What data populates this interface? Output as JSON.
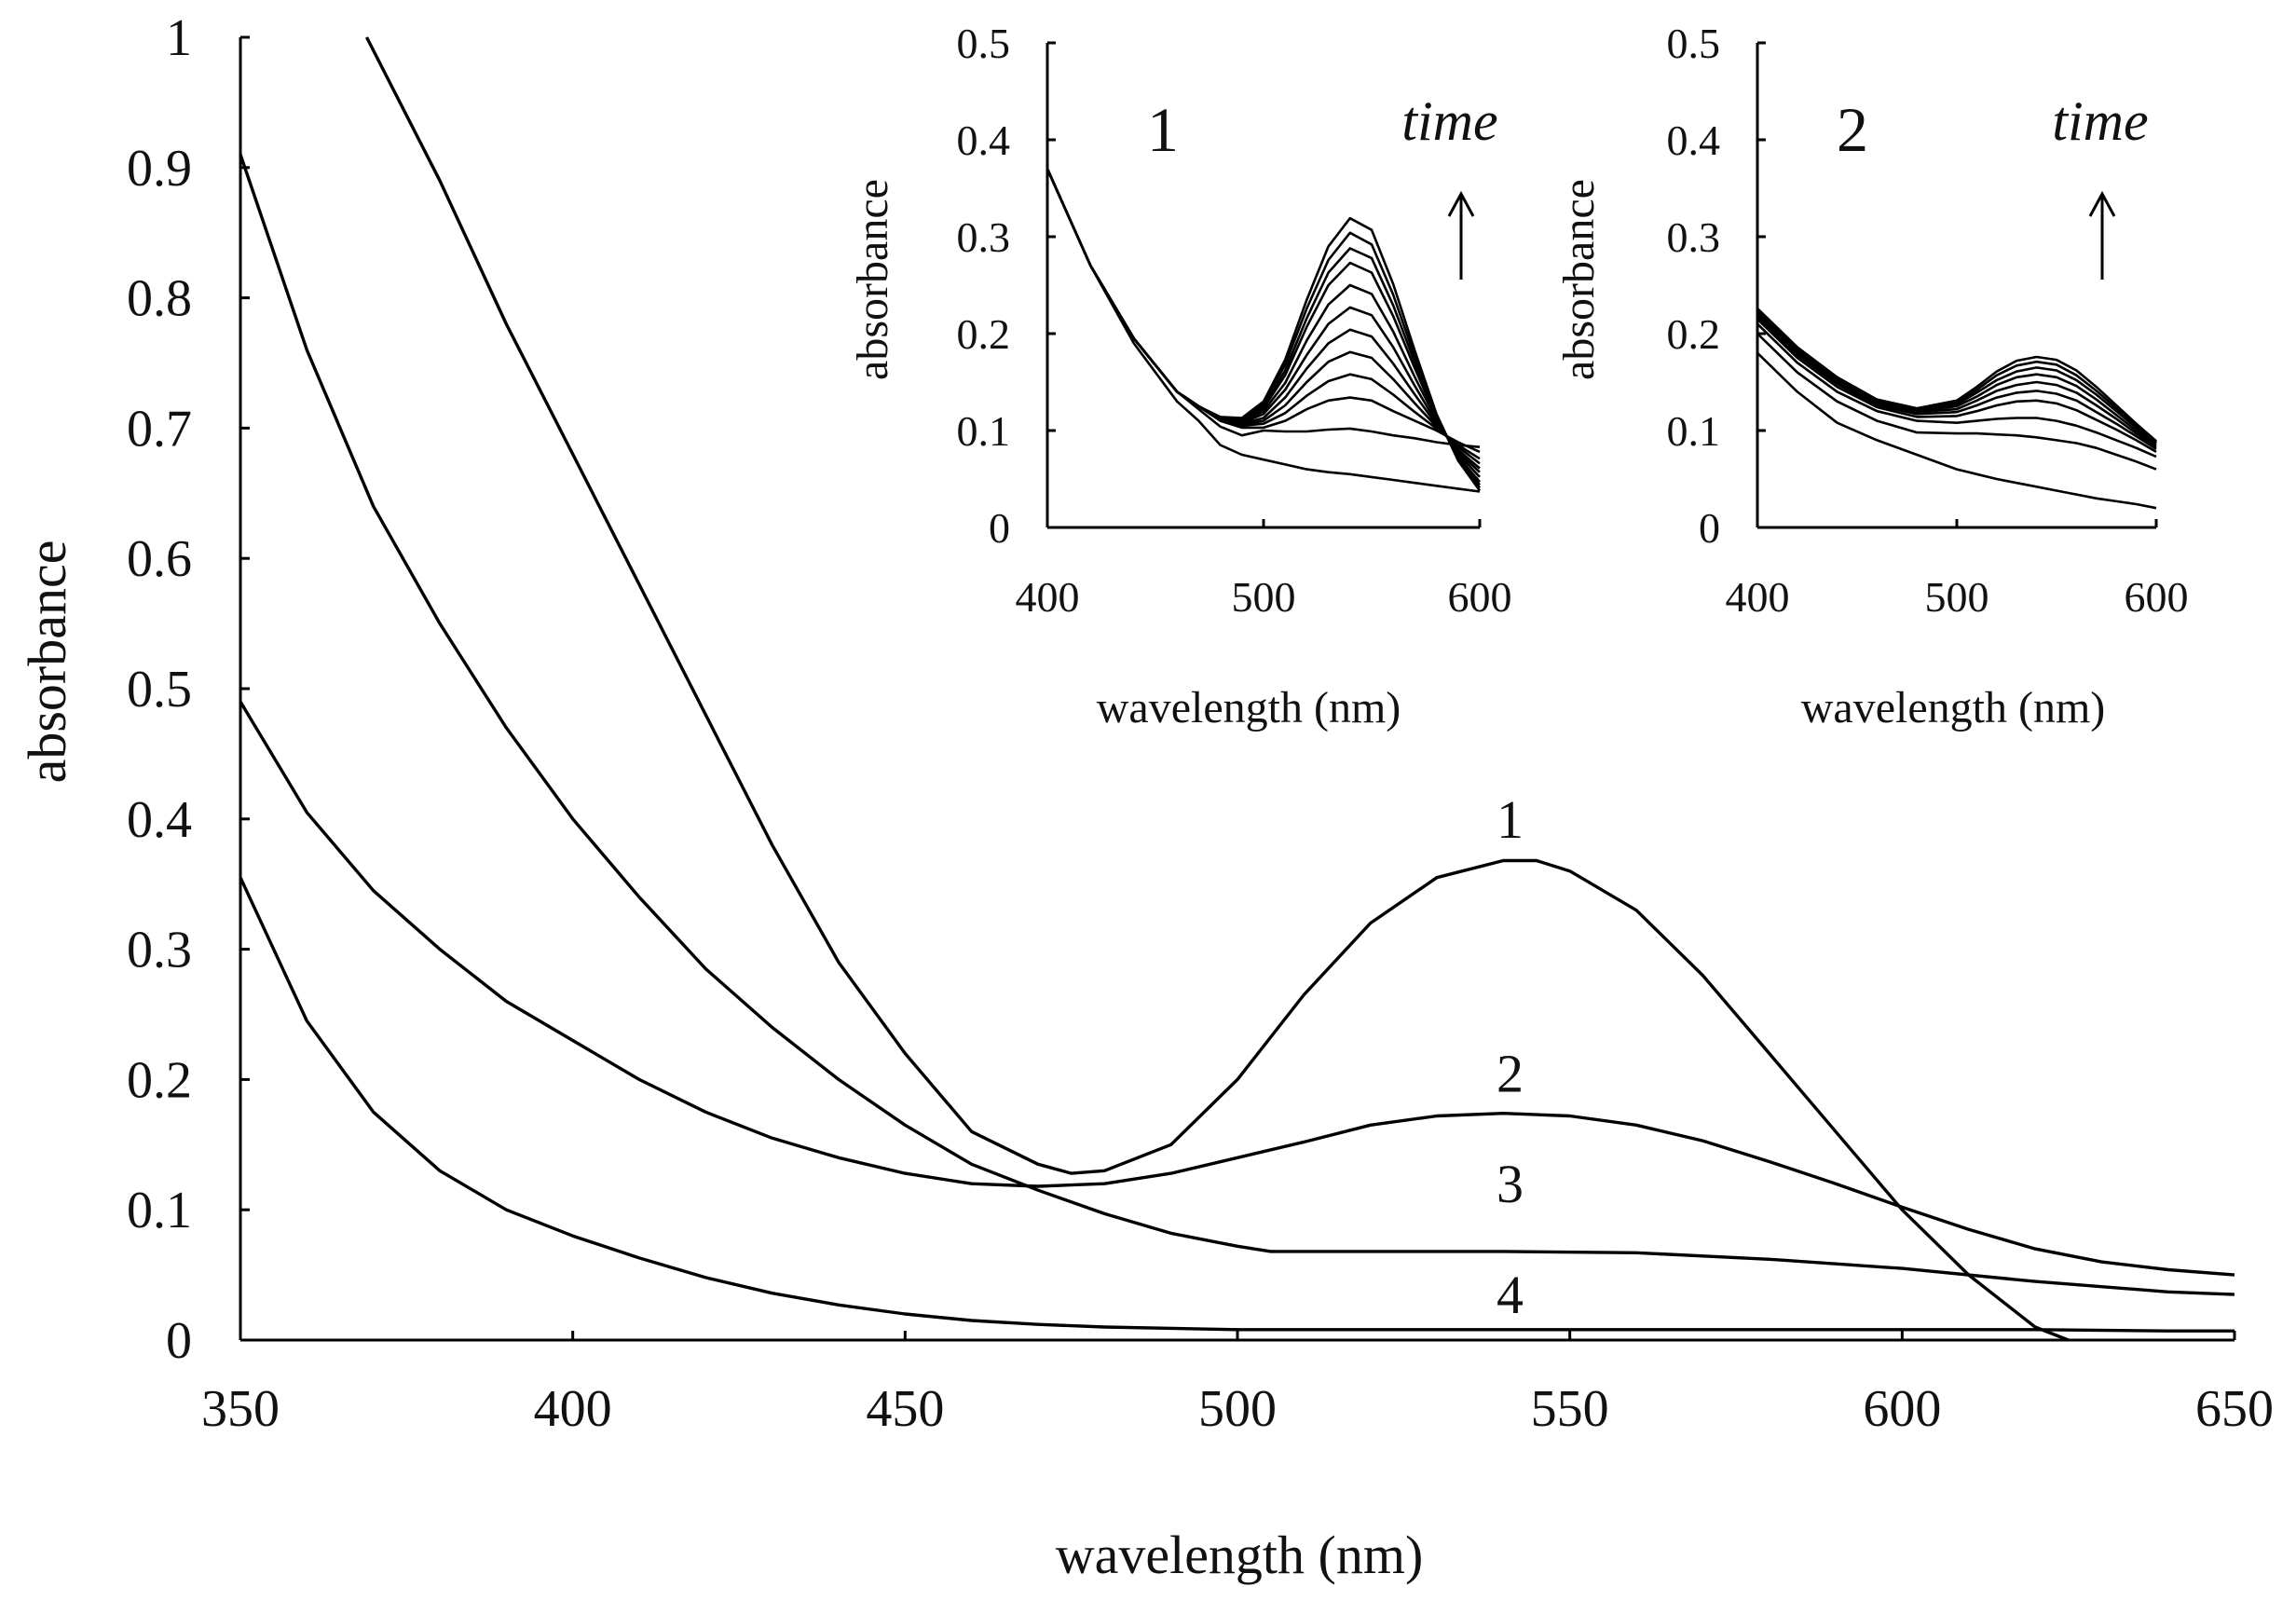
{
  "chart_data": [
    {
      "id": "main",
      "type": "line",
      "title": "",
      "xlabel": "wavelength (nm)",
      "ylabel": "absorbance",
      "xlim": [
        350,
        650
      ],
      "ylim": [
        0,
        1
      ],
      "x_ticks": [
        350,
        400,
        450,
        500,
        550,
        600,
        650
      ],
      "y_ticks": [
        0,
        0.1,
        0.2,
        0.3,
        0.4,
        0.5,
        0.6,
        0.7,
        0.8,
        0.9,
        1
      ],
      "y_tick_labels": [
        "0",
        "0.1",
        "0.2",
        "0.3",
        "0.4",
        "0.5",
        "0.6",
        "0.7",
        "0.8",
        "0.9",
        "1"
      ],
      "grid": false,
      "series": [
        {
          "curve_label": "1",
          "x": [
            369,
            380,
            390,
            400,
            410,
            420,
            430,
            440,
            450,
            460,
            470,
            475,
            480,
            490,
            500,
            510,
            520,
            530,
            540,
            545,
            550,
            560,
            570,
            580,
            590,
            600,
            610,
            620,
            625
          ],
          "y": [
            1.0,
            0.89,
            0.78,
            0.68,
            0.58,
            0.48,
            0.38,
            0.29,
            0.22,
            0.16,
            0.135,
            0.128,
            0.13,
            0.15,
            0.2,
            0.265,
            0.32,
            0.355,
            0.368,
            0.368,
            0.36,
            0.33,
            0.28,
            0.22,
            0.16,
            0.1,
            0.05,
            0.01,
            0.0
          ]
        },
        {
          "curve_label": "2",
          "x": [
            350,
            360,
            370,
            380,
            390,
            400,
            410,
            420,
            430,
            440,
            450,
            460,
            470,
            480,
            490,
            500,
            510,
            520,
            530,
            540,
            550,
            560,
            570,
            580,
            590,
            600,
            610,
            620,
            630,
            640,
            650
          ],
          "y": [
            0.49,
            0.405,
            0.345,
            0.3,
            0.26,
            0.23,
            0.2,
            0.175,
            0.155,
            0.14,
            0.128,
            0.12,
            0.118,
            0.12,
            0.128,
            0.14,
            0.152,
            0.165,
            0.172,
            0.174,
            0.172,
            0.165,
            0.153,
            0.137,
            0.12,
            0.102,
            0.085,
            0.07,
            0.06,
            0.054,
            0.05
          ]
        },
        {
          "curve_label": "3",
          "x": [
            350,
            360,
            370,
            380,
            390,
            400,
            410,
            420,
            430,
            440,
            450,
            460,
            470,
            480,
            490,
            500,
            505,
            520,
            540,
            560,
            580,
            600,
            620,
            640,
            650
          ],
          "y": [
            0.91,
            0.76,
            0.64,
            0.55,
            0.47,
            0.4,
            0.34,
            0.285,
            0.24,
            0.2,
            0.165,
            0.135,
            0.115,
            0.097,
            0.082,
            0.072,
            0.068,
            0.068,
            0.068,
            0.067,
            0.062,
            0.055,
            0.045,
            0.037,
            0.035
          ]
        },
        {
          "curve_label": "4",
          "x": [
            350,
            360,
            370,
            380,
            390,
            400,
            410,
            420,
            430,
            440,
            450,
            460,
            470,
            480,
            500,
            520,
            540,
            560,
            580,
            600,
            620,
            640,
            650
          ],
          "y": [
            0.355,
            0.245,
            0.175,
            0.13,
            0.1,
            0.08,
            0.063,
            0.048,
            0.036,
            0.027,
            0.02,
            0.015,
            0.012,
            0.01,
            0.008,
            0.008,
            0.008,
            0.008,
            0.008,
            0.008,
            0.008,
            0.007,
            0.007
          ]
        }
      ]
    },
    {
      "id": "inset-1",
      "type": "line",
      "title": "",
      "panel_label": "1",
      "annotation": "time",
      "xlabel": "wavelength (nm)",
      "ylabel": "absorbance",
      "xlim": [
        400,
        600
      ],
      "ylim": [
        0,
        0.5
      ],
      "x_ticks": [
        400,
        500,
        600
      ],
      "y_ticks": [
        0,
        0.1,
        0.2,
        0.3,
        0.4,
        0.5
      ],
      "y_tick_labels": [
        "0",
        "0.1",
        "0.2",
        "0.3",
        "0.4",
        "0.5"
      ],
      "x": [
        400,
        420,
        440,
        460,
        470,
        480,
        490,
        500,
        510,
        520,
        530,
        540,
        550,
        560,
        570,
        580,
        590,
        600
      ],
      "peak_heights": [
        0.0,
        0.1,
        0.13,
        0.16,
        0.19,
        0.22,
        0.25,
        0.28,
        0.31,
        0.33,
        0.35,
        0.37
      ],
      "series": [
        {
          "y": [
            0.37,
            0.27,
            0.19,
            0.13,
            0.11,
            0.085,
            0.075,
            0.07,
            0.065,
            0.06,
            0.057,
            0.055,
            0.052,
            0.049,
            0.046,
            0.043,
            0.04,
            0.037
          ]
        },
        {
          "y": [
            0.37,
            0.27,
            0.195,
            0.14,
            0.122,
            0.104,
            0.095,
            0.1,
            0.099,
            0.099,
            0.101,
            0.102,
            0.099,
            0.095,
            0.092,
            0.088,
            0.085,
            0.083
          ]
        },
        {
          "y": [
            0.37,
            0.27,
            0.195,
            0.14,
            0.125,
            0.11,
            0.103,
            0.103,
            0.11,
            0.122,
            0.131,
            0.134,
            0.131,
            0.12,
            0.11,
            0.1,
            0.088,
            0.078
          ]
        },
        {
          "y": [
            0.37,
            0.27,
            0.195,
            0.14,
            0.125,
            0.111,
            0.105,
            0.107,
            0.118,
            0.136,
            0.151,
            0.158,
            0.153,
            0.137,
            0.119,
            0.102,
            0.085,
            0.071
          ]
        },
        {
          "y": [
            0.37,
            0.27,
            0.195,
            0.14,
            0.125,
            0.111,
            0.106,
            0.11,
            0.126,
            0.15,
            0.171,
            0.181,
            0.175,
            0.153,
            0.128,
            0.104,
            0.083,
            0.066
          ]
        },
        {
          "y": [
            0.37,
            0.27,
            0.195,
            0.14,
            0.125,
            0.112,
            0.107,
            0.113,
            0.134,
            0.164,
            0.19,
            0.204,
            0.197,
            0.169,
            0.137,
            0.106,
            0.08,
            0.061
          ]
        },
        {
          "y": [
            0.37,
            0.27,
            0.195,
            0.14,
            0.125,
            0.112,
            0.108,
            0.117,
            0.142,
            0.178,
            0.21,
            0.227,
            0.219,
            0.186,
            0.146,
            0.108,
            0.078,
            0.057
          ]
        },
        {
          "y": [
            0.37,
            0.27,
            0.195,
            0.14,
            0.125,
            0.113,
            0.109,
            0.12,
            0.149,
            0.193,
            0.23,
            0.25,
            0.241,
            0.202,
            0.155,
            0.111,
            0.076,
            0.052
          ]
        },
        {
          "y": [
            0.37,
            0.27,
            0.195,
            0.14,
            0.125,
            0.113,
            0.11,
            0.123,
            0.157,
            0.207,
            0.25,
            0.273,
            0.263,
            0.218,
            0.164,
            0.113,
            0.073,
            0.047
          ]
        },
        {
          "y": [
            0.37,
            0.27,
            0.195,
            0.14,
            0.125,
            0.113,
            0.111,
            0.125,
            0.162,
            0.216,
            0.263,
            0.288,
            0.278,
            0.229,
            0.17,
            0.114,
            0.072,
            0.044
          ]
        },
        {
          "y": [
            0.37,
            0.27,
            0.195,
            0.14,
            0.125,
            0.113,
            0.112,
            0.127,
            0.168,
            0.226,
            0.276,
            0.304,
            0.292,
            0.24,
            0.176,
            0.116,
            0.07,
            0.041
          ]
        },
        {
          "y": [
            0.37,
            0.27,
            0.195,
            0.14,
            0.125,
            0.114,
            0.113,
            0.13,
            0.173,
            0.235,
            0.29,
            0.319,
            0.307,
            0.251,
            0.182,
            0.117,
            0.069,
            0.038
          ]
        }
      ]
    },
    {
      "id": "inset-2",
      "type": "line",
      "title": "",
      "panel_label": "2",
      "annotation": "time",
      "xlabel": "wavelength (nm)",
      "ylabel": "absorbance",
      "xlim": [
        400,
        600
      ],
      "ylim": [
        0,
        0.5
      ],
      "x_ticks": [
        400,
        500,
        600
      ],
      "y_ticks": [
        0,
        0.1,
        0.2,
        0.3,
        0.4,
        0.5
      ],
      "y_tick_labels": [
        "0",
        "0.1",
        "0.2",
        "0.3",
        "0.4",
        "0.5"
      ],
      "x": [
        400,
        420,
        440,
        460,
        480,
        500,
        510,
        520,
        530,
        540,
        550,
        560,
        570,
        580,
        590,
        600
      ],
      "series": [
        {
          "y": [
            0.18,
            0.14,
            0.108,
            0.09,
            0.075,
            0.06,
            0.055,
            0.05,
            0.046,
            0.042,
            0.038,
            0.034,
            0.03,
            0.027,
            0.024,
            0.02
          ]
        },
        {
          "y": [
            0.2,
            0.16,
            0.13,
            0.11,
            0.098,
            0.097,
            0.097,
            0.096,
            0.095,
            0.093,
            0.09,
            0.087,
            0.082,
            0.075,
            0.068,
            0.06
          ]
        },
        {
          "y": [
            0.21,
            0.17,
            0.14,
            0.12,
            0.11,
            0.108,
            0.11,
            0.112,
            0.113,
            0.113,
            0.11,
            0.105,
            0.098,
            0.09,
            0.082,
            0.073
          ]
        },
        {
          "y": [
            0.215,
            0.175,
            0.145,
            0.124,
            0.114,
            0.115,
            0.12,
            0.126,
            0.13,
            0.131,
            0.128,
            0.121,
            0.111,
            0.101,
            0.09,
            0.078
          ]
        },
        {
          "y": [
            0.218,
            0.178,
            0.148,
            0.126,
            0.117,
            0.119,
            0.126,
            0.134,
            0.139,
            0.141,
            0.138,
            0.131,
            0.119,
            0.107,
            0.094,
            0.081
          ]
        },
        {
          "y": [
            0.22,
            0.18,
            0.15,
            0.128,
            0.119,
            0.122,
            0.131,
            0.141,
            0.147,
            0.15,
            0.147,
            0.139,
            0.126,
            0.112,
            0.097,
            0.083
          ]
        },
        {
          "y": [
            0.222,
            0.182,
            0.152,
            0.129,
            0.12,
            0.125,
            0.135,
            0.147,
            0.155,
            0.158,
            0.155,
            0.146,
            0.132,
            0.116,
            0.1,
            0.085
          ]
        },
        {
          "y": [
            0.224,
            0.184,
            0.153,
            0.13,
            0.121,
            0.127,
            0.139,
            0.152,
            0.161,
            0.165,
            0.162,
            0.152,
            0.137,
            0.12,
            0.103,
            0.087
          ]
        },
        {
          "y": [
            0.225,
            0.185,
            0.154,
            0.131,
            0.122,
            0.129,
            0.142,
            0.157,
            0.167,
            0.171,
            0.168,
            0.157,
            0.141,
            0.123,
            0.105,
            0.088
          ]
        },
        {
          "y": [
            0.226,
            0.186,
            0.155,
            0.132,
            0.123,
            0.131,
            0.145,
            0.161,
            0.172,
            0.176,
            0.173,
            0.162,
            0.145,
            0.126,
            0.107,
            0.089
          ]
        }
      ]
    }
  ]
}
